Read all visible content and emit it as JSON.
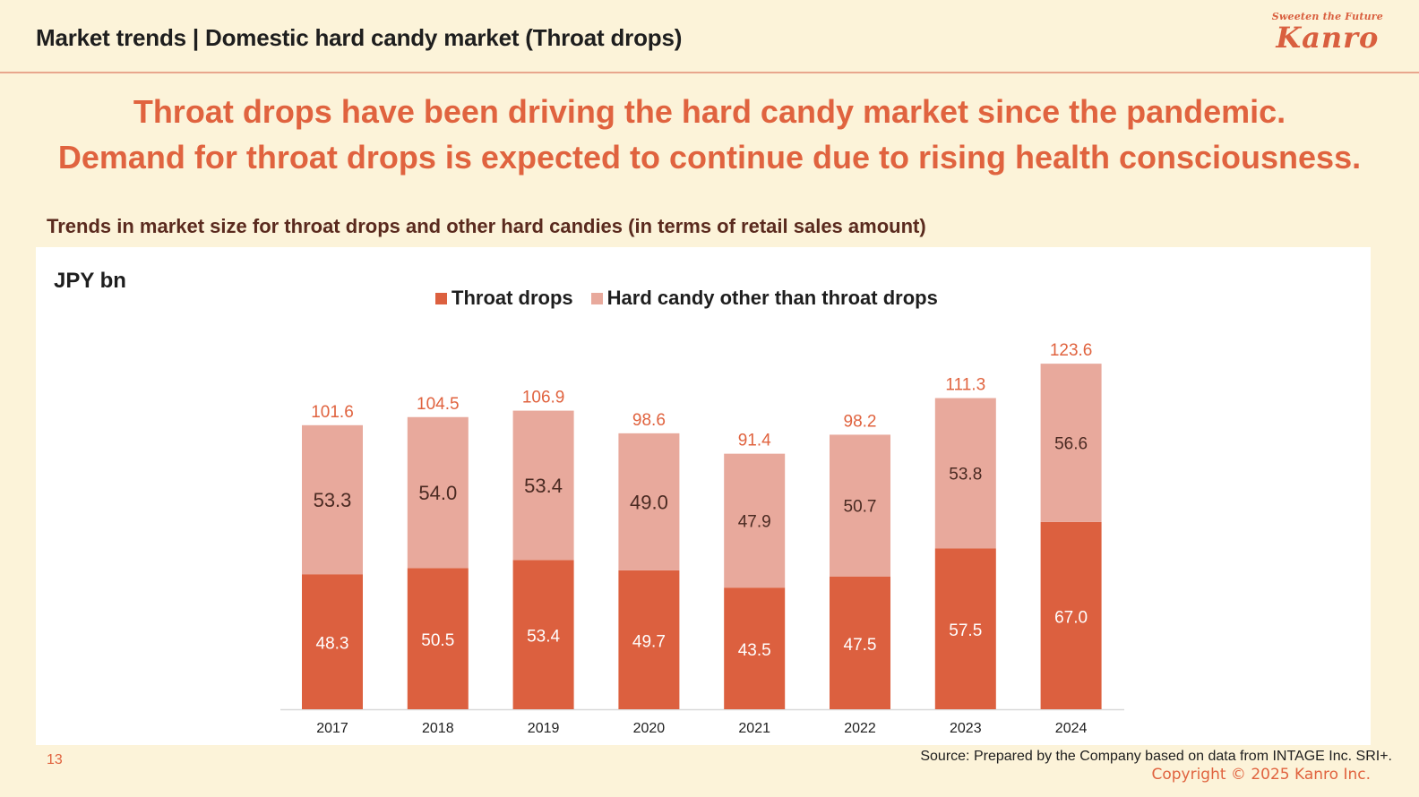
{
  "header": {
    "title": "Market trends | Domestic hard candy market (Throat drops)",
    "logo_tagline": "Sweeten the Future",
    "logo_name": "Kanro"
  },
  "headline": {
    "line1": "Throat drops have been driving the hard candy market since the pandemic.",
    "line2": "Demand for throat drops is expected to continue due to rising health consciousness."
  },
  "chart_subtitle": "Trends in market size for throat drops and other hard candies (in terms of retail sales amount)",
  "colors": {
    "throat_drops": "#dc603f",
    "other": "#e8a99c",
    "total_label": "#e0633f",
    "inner_label_dark": "#4a2a22",
    "inner_label_light": "#ffffff"
  },
  "chart_data": {
    "type": "bar",
    "stacked": true,
    "title": "Trends in market size for throat drops and other hard candies (in terms of retail sales amount)",
    "unit_label": "JPY bn",
    "xlabel": "",
    "ylabel": "JPY bn",
    "ylim": [
      0,
      130
    ],
    "grid": false,
    "legend_position": "top-center",
    "categories": [
      "2017",
      "2018",
      "2019",
      "2020",
      "2021",
      "2022",
      "2023",
      "2024"
    ],
    "series": [
      {
        "name": "Throat drops",
        "values": [
          48.3,
          50.5,
          53.4,
          49.7,
          43.5,
          47.5,
          57.5,
          67.0
        ]
      },
      {
        "name": "Hard candy other than throat drops",
        "values": [
          53.3,
          54.0,
          53.4,
          49.0,
          47.9,
          50.7,
          53.8,
          56.6
        ]
      }
    ],
    "totals": [
      101.6,
      104.5,
      106.9,
      98.6,
      91.4,
      98.2,
      111.3,
      123.6
    ]
  },
  "footer": {
    "page_number": "13",
    "source": "Source: Prepared by the Company based on data from INTAGE Inc. SRI+.",
    "copyright": "Copyright © 2025  Kanro Inc."
  }
}
